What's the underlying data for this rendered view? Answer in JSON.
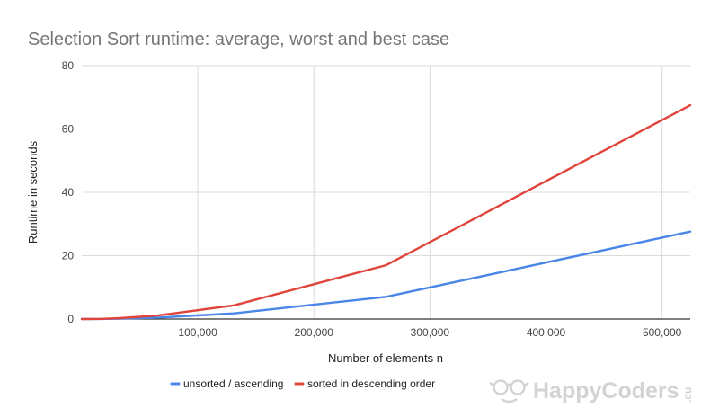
{
  "chart_data": {
    "type": "line",
    "title": "Selection Sort runtime: average, worst and best case",
    "xlabel": "Number of elements n",
    "ylabel": "Runtime in seconds",
    "xlim": [
      0,
      524288
    ],
    "ylim": [
      0,
      80
    ],
    "x_ticks": [
      {
        "value": 100000,
        "label": "100,000"
      },
      {
        "value": 200000,
        "label": "200,000"
      },
      {
        "value": 300000,
        "label": "300,000"
      },
      {
        "value": 400000,
        "label": "400,000"
      },
      {
        "value": 500000,
        "label": "500,000"
      }
    ],
    "y_ticks": [
      {
        "value": 0,
        "label": "0"
      },
      {
        "value": 20,
        "label": "20"
      },
      {
        "value": 40,
        "label": "40"
      },
      {
        "value": 60,
        "label": "60"
      },
      {
        "value": 80,
        "label": "80"
      }
    ],
    "grid": true,
    "legend_position": "bottom",
    "series": [
      {
        "name": "unsorted / ascending",
        "color": "#4a86e8",
        "x": [
          0,
          16384,
          32768,
          65536,
          131072,
          262144,
          524288
        ],
        "y": [
          0,
          0.03,
          0.12,
          0.45,
          1.8,
          7.0,
          27.6
        ]
      },
      {
        "name": "sorted in descending order",
        "color": "#e0443a",
        "x": [
          0,
          16384,
          32768,
          65536,
          131072,
          262144,
          524288
        ],
        "y": [
          0,
          0.07,
          0.27,
          1.1,
          4.3,
          17.0,
          67.5
        ]
      }
    ]
  },
  "watermark": {
    "brand": "HappyCoders",
    "suffix": ".eu",
    "icon": "glasses-smile-icon"
  }
}
